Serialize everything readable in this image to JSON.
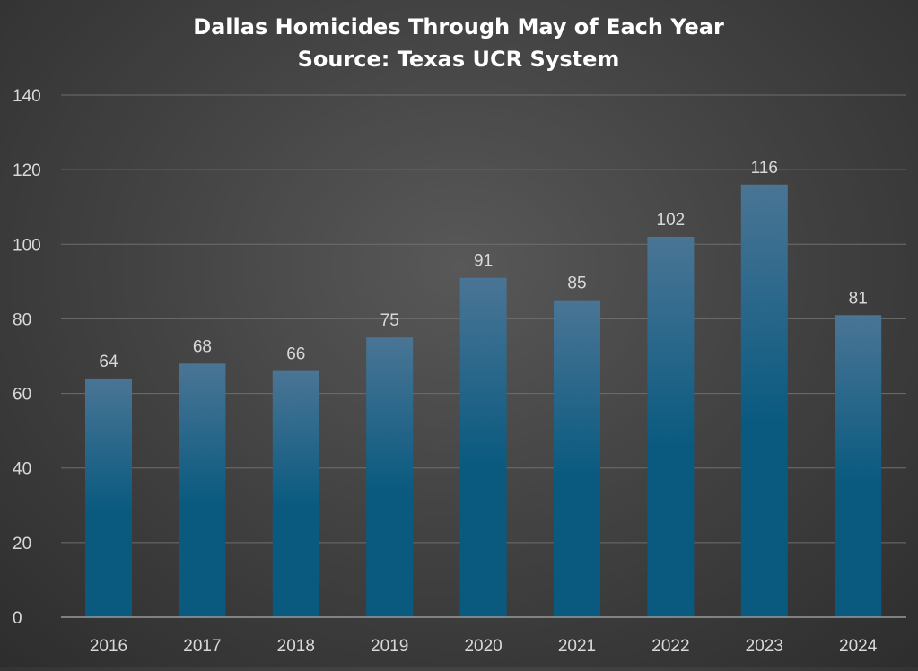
{
  "chart_data": {
    "type": "bar",
    "title": "Dallas Homicides Through May of Each Year",
    "subtitle": "Source: Texas UCR System",
    "categories": [
      "2016",
      "2017",
      "2018",
      "2019",
      "2020",
      "2021",
      "2022",
      "2023",
      "2024"
    ],
    "values": [
      64,
      68,
      66,
      75,
      91,
      85,
      102,
      116,
      81
    ],
    "ylim": [
      0,
      140
    ],
    "yticks": [
      0,
      20,
      40,
      60,
      80,
      100,
      120,
      140
    ],
    "xlabel": "",
    "ylabel": "",
    "grid": true,
    "legend": "none",
    "data_labels": true
  },
  "colors": {
    "bar_top": "#4a7595",
    "bar_bottom": "#0a5a80",
    "gridline": "#6e6e6e",
    "axis": "#9a9a9a",
    "text": "#d9d9d9",
    "title": "#ffffff"
  }
}
